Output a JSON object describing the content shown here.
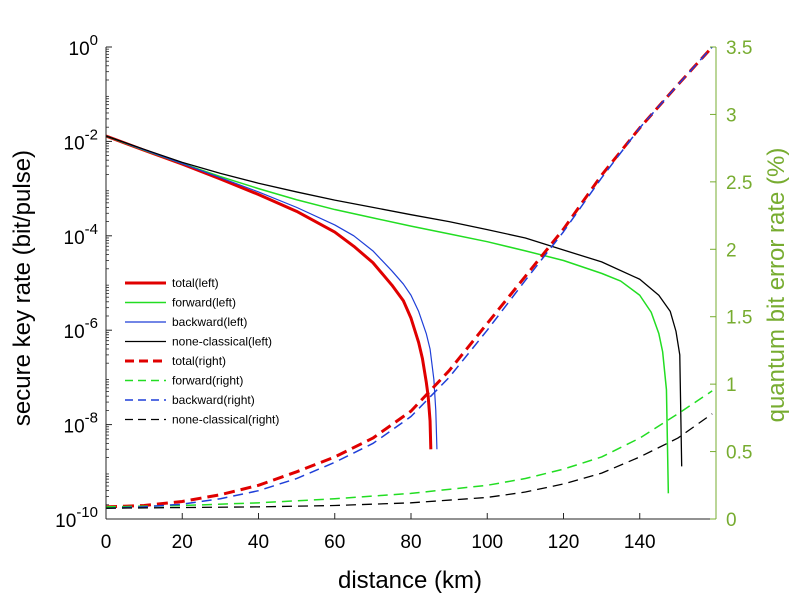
{
  "chart_data": {
    "type": "line",
    "xlabel": "distance (km)",
    "ylabel_left": "secure key rate (bit/pulse)",
    "ylabel_right": "quantum bit error rate (%)",
    "xlim": [
      0,
      160
    ],
    "xticks": [
      "0",
      "20",
      "40",
      "60",
      "80",
      "100",
      "120",
      "140"
    ],
    "xtick_values": [
      0,
      20,
      40,
      60,
      80,
      100,
      120,
      140
    ],
    "yscale_left": "log",
    "ylim_left": [
      1e-10,
      1
    ],
    "yticks_left": [
      {
        "value": 1e-10,
        "base": "10",
        "exp": "-10"
      },
      {
        "value": 1e-08,
        "base": "10",
        "exp": "-8"
      },
      {
        "value": 1e-06,
        "base": "10",
        "exp": "-6"
      },
      {
        "value": 0.0001,
        "base": "10",
        "exp": "-4"
      },
      {
        "value": 0.01,
        "base": "10",
        "exp": "-2"
      },
      {
        "value": 1,
        "base": "10",
        "exp": "0"
      }
    ],
    "ylim_right": [
      0,
      3.5
    ],
    "yticks_right": [
      "0",
      "0.5",
      "1",
      "1.5",
      "2",
      "2.5",
      "3",
      "3.5"
    ],
    "ytick_right_values": [
      0,
      0.5,
      1,
      1.5,
      2,
      2.5,
      3,
      3.5
    ],
    "right_axis_color": "#77ac30",
    "grid": false,
    "legend_position": "center-left",
    "series": [
      {
        "name": "total(left)",
        "axis": "left",
        "style": "solid",
        "color": "#e00000",
        "width": 3,
        "x": [
          0,
          10,
          20,
          30,
          40,
          50,
          60,
          65,
          70,
          75,
          78,
          80,
          82,
          83,
          84,
          84.5,
          85,
          85.2
        ],
        "y": [
          0.013,
          0.0065,
          0.0033,
          0.0016,
          0.00075,
          0.00033,
          0.00012,
          6e-05,
          2.7e-05,
          9e-06,
          4.2e-06,
          1.8e-06,
          5.5e-07,
          2.5e-07,
          8e-08,
          4e-08,
          1.2e-08,
          3e-09
        ]
      },
      {
        "name": "forward(left)",
        "axis": "left",
        "style": "solid",
        "color": "#22dd22",
        "width": 1.5,
        "x": [
          0,
          10,
          20,
          30,
          40,
          50,
          60,
          70,
          80,
          90,
          100,
          110,
          120,
          130,
          135,
          140,
          143,
          145,
          146,
          147,
          147.5
        ],
        "y": [
          0.013,
          0.0065,
          0.0034,
          0.0018,
          0.001,
          0.00058,
          0.00036,
          0.00024,
          0.00016,
          0.00011,
          7.5e-05,
          4.8e-05,
          3e-05,
          1.6e-05,
          1.1e-05,
          5.5e-06,
          2.4e-06,
          8.5e-07,
          3.5e-07,
          5.5e-08,
          3.5e-10
        ]
      },
      {
        "name": "backward(left)",
        "axis": "left",
        "style": "solid",
        "color": "#1f3fd8",
        "width": 1.2,
        "x": [
          0,
          10,
          20,
          30,
          40,
          50,
          60,
          65,
          70,
          75,
          78,
          80,
          82,
          84,
          85,
          86,
          86.5,
          86.8
        ],
        "y": [
          0.013,
          0.0066,
          0.0034,
          0.0017,
          0.00085,
          0.0004,
          0.00017,
          0.0001,
          4.8e-05,
          1.8e-05,
          9.5e-06,
          5.5e-06,
          2.5e-06,
          8.5e-07,
          4e-07,
          9e-08,
          2e-08,
          3e-09
        ]
      },
      {
        "name": "none-classical(left)",
        "axis": "left",
        "style": "solid",
        "color": "#000000",
        "width": 1.3,
        "x": [
          0,
          10,
          20,
          30,
          40,
          50,
          60,
          70,
          80,
          90,
          100,
          110,
          120,
          130,
          140,
          145,
          148,
          149.5,
          150.5,
          151
        ],
        "y": [
          0.013,
          0.0068,
          0.0036,
          0.0021,
          0.0013,
          0.00085,
          0.00057,
          0.0004,
          0.00028,
          0.0002,
          0.000135,
          9e-05,
          5e-05,
          2.8e-05,
          1.2e-05,
          5.5e-06,
          2.5e-06,
          9.5e-07,
          3e-07,
          1.3e-09
        ]
      },
      {
        "name": "total(right)",
        "axis": "right",
        "style": "dashed",
        "color": "#e00000",
        "width": 3,
        "x": [
          0,
          10,
          20,
          30,
          40,
          50,
          60,
          70,
          80,
          90,
          100,
          110,
          120,
          130,
          140,
          150,
          159
        ],
        "y": [
          0.09,
          0.1,
          0.13,
          0.18,
          0.25,
          0.35,
          0.46,
          0.6,
          0.8,
          1.1,
          1.45,
          1.8,
          2.15,
          2.55,
          2.9,
          3.22,
          3.5
        ]
      },
      {
        "name": "forward(right)",
        "axis": "right",
        "style": "dashed",
        "color": "#22dd22",
        "width": 1.5,
        "x": [
          0,
          20,
          40,
          60,
          80,
          100,
          110,
          120,
          130,
          140,
          150,
          159
        ],
        "y": [
          0.09,
          0.1,
          0.12,
          0.15,
          0.19,
          0.25,
          0.3,
          0.37,
          0.46,
          0.6,
          0.78,
          0.95
        ]
      },
      {
        "name": "backward(right)",
        "axis": "right",
        "style": "dashed",
        "color": "#1f3fd8",
        "width": 1.5,
        "x": [
          0,
          10,
          20,
          30,
          40,
          50,
          60,
          70,
          80,
          90,
          100,
          110,
          120,
          130,
          140,
          150,
          159
        ],
        "y": [
          0.08,
          0.09,
          0.11,
          0.15,
          0.21,
          0.3,
          0.42,
          0.56,
          0.76,
          1.05,
          1.4,
          1.77,
          2.13,
          2.53,
          2.9,
          3.22,
          3.5
        ]
      },
      {
        "name": "none-classical(right)",
        "axis": "right",
        "style": "dashed",
        "color": "#000000",
        "width": 1.3,
        "x": [
          0,
          20,
          40,
          60,
          80,
          100,
          110,
          120,
          130,
          140,
          150,
          159
        ],
        "y": [
          0.08,
          0.085,
          0.09,
          0.1,
          0.12,
          0.16,
          0.2,
          0.26,
          0.34,
          0.46,
          0.6,
          0.78
        ]
      }
    ]
  }
}
